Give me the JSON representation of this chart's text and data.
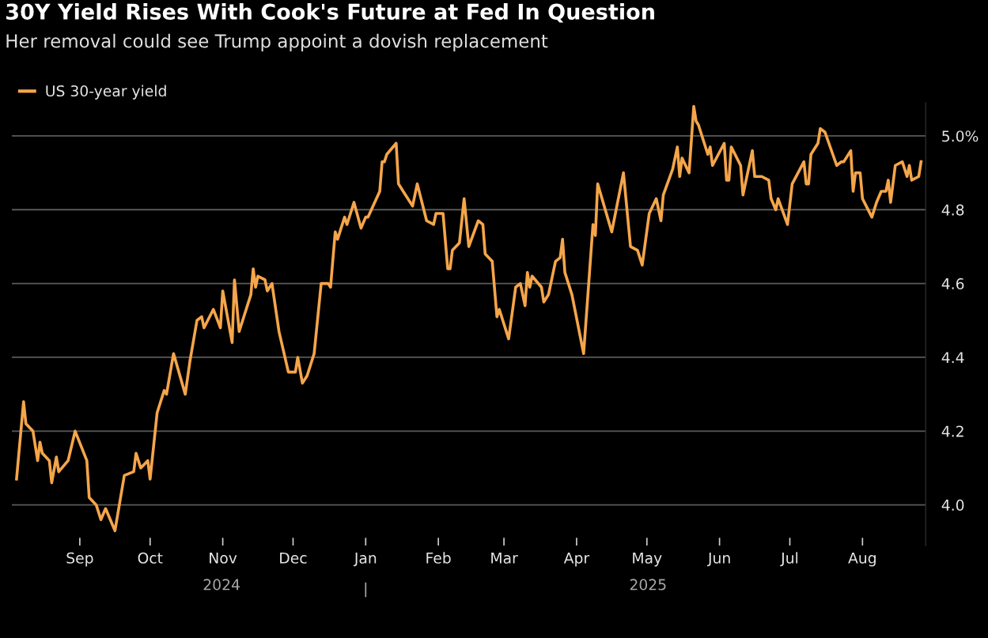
{
  "chart_data": {
    "type": "line",
    "title": "30Y Yield Rises With Cook's Future at Fed In Question",
    "subtitle": "Her removal could see Trump appoint a dovish replacement",
    "x": [
      "2024-08-05",
      "2024-08-08",
      "2024-08-09",
      "2024-08-12",
      "2024-08-14",
      "2024-08-15",
      "2024-08-16",
      "2024-08-19",
      "2024-08-20",
      "2024-08-22",
      "2024-08-23",
      "2024-08-27",
      "2024-08-30",
      "2024-09-04",
      "2024-09-05",
      "2024-09-08",
      "2024-09-10",
      "2024-09-12",
      "2024-09-16",
      "2024-09-20",
      "2024-09-24",
      "2024-09-25",
      "2024-09-27",
      "2024-09-30",
      "2024-10-01",
      "2024-10-04",
      "2024-10-07",
      "2024-10-08",
      "2024-10-11",
      "2024-10-16",
      "2024-10-18",
      "2024-10-21",
      "2024-10-23",
      "2024-10-24",
      "2024-10-28",
      "2024-10-31",
      "2024-11-01",
      "2024-11-05",
      "2024-11-06",
      "2024-11-08",
      "2024-11-13",
      "2024-11-14",
      "2024-11-15",
      "2024-11-16",
      "2024-11-19",
      "2024-11-20",
      "2024-11-22",
      "2024-11-25",
      "2024-11-29",
      "2024-12-02",
      "2024-12-03",
      "2024-12-05",
      "2024-12-07",
      "2024-12-10",
      "2024-12-13",
      "2024-12-16",
      "2024-12-17",
      "2024-12-19",
      "2024-12-20",
      "2024-12-23",
      "2024-12-24",
      "2024-12-27",
      "2024-12-30",
      "2025-01-01",
      "2025-01-02",
      "2025-01-07",
      "2025-01-08",
      "2025-01-09",
      "2025-01-10",
      "2025-01-14",
      "2025-01-15",
      "2025-01-17",
      "2025-01-21",
      "2025-01-23",
      "2025-01-27",
      "2025-01-30",
      "2025-01-31",
      "2025-02-03",
      "2025-02-05",
      "2025-02-06",
      "2025-02-07",
      "2025-02-10",
      "2025-02-12",
      "2025-02-14",
      "2025-02-18",
      "2025-02-20",
      "2025-02-21",
      "2025-02-24",
      "2025-02-26",
      "2025-02-27",
      "2025-03-03",
      "2025-03-06",
      "2025-03-08",
      "2025-03-10",
      "2025-03-11",
      "2025-03-12",
      "2025-03-13",
      "2025-03-17",
      "2025-03-18",
      "2025-03-20",
      "2025-03-23",
      "2025-03-25",
      "2025-03-26",
      "2025-03-27",
      "2025-03-30",
      "2025-04-04",
      "2025-04-08",
      "2025-04-09",
      "2025-04-10",
      "2025-04-16",
      "2025-04-21",
      "2025-04-24",
      "2025-04-27",
      "2025-04-29",
      "2025-05-02",
      "2025-05-05",
      "2025-05-07",
      "2025-05-08",
      "2025-05-12",
      "2025-05-14",
      "2025-05-15",
      "2025-05-16",
      "2025-05-19",
      "2025-05-21",
      "2025-05-22",
      "2025-05-23",
      "2025-05-27",
      "2025-05-28",
      "2025-05-29",
      "2025-06-03",
      "2025-06-04",
      "2025-06-05",
      "2025-06-06",
      "2025-06-10",
      "2025-06-11",
      "2025-06-15",
      "2025-06-16",
      "2025-06-19",
      "2025-06-22",
      "2025-06-23",
      "2025-06-25",
      "2025-06-26",
      "2025-06-30",
      "2025-07-02",
      "2025-07-07",
      "2025-07-08",
      "2025-07-09",
      "2025-07-10",
      "2025-07-13",
      "2025-07-14",
      "2025-07-16",
      "2025-07-21",
      "2025-07-23",
      "2025-07-24",
      "2025-07-27",
      "2025-07-28",
      "2025-07-29",
      "2025-07-31",
      "2025-08-01",
      "2025-08-05",
      "2025-08-07",
      "2025-08-09",
      "2025-08-11",
      "2025-08-12",
      "2025-08-13",
      "2025-08-15",
      "2025-08-18",
      "2025-08-20",
      "2025-08-21",
      "2025-08-22",
      "2025-08-25",
      "2025-08-26"
    ],
    "series": [
      {
        "name": "US 30-year yield",
        "color": "#f5a54a",
        "values": [
          4.07,
          4.28,
          4.22,
          4.2,
          4.12,
          4.17,
          4.14,
          4.12,
          4.06,
          4.13,
          4.09,
          4.12,
          4.2,
          4.12,
          4.02,
          4.0,
          3.96,
          3.99,
          3.93,
          4.08,
          4.09,
          4.14,
          4.1,
          4.12,
          4.07,
          4.25,
          4.31,
          4.3,
          4.41,
          4.3,
          4.39,
          4.5,
          4.51,
          4.48,
          4.53,
          4.48,
          4.58,
          4.44,
          4.61,
          4.47,
          4.57,
          4.64,
          4.59,
          4.62,
          4.61,
          4.58,
          4.6,
          4.47,
          4.36,
          4.36,
          4.4,
          4.33,
          4.35,
          4.41,
          4.6,
          4.6,
          4.59,
          4.74,
          4.72,
          4.78,
          4.76,
          4.82,
          4.75,
          4.78,
          4.78,
          4.85,
          4.93,
          4.93,
          4.95,
          4.98,
          4.87,
          4.85,
          4.81,
          4.87,
          4.77,
          4.76,
          4.79,
          4.79,
          4.64,
          4.64,
          4.69,
          4.71,
          4.83,
          4.7,
          4.77,
          4.76,
          4.68,
          4.66,
          4.51,
          4.53,
          4.45,
          4.59,
          4.6,
          4.54,
          4.63,
          4.59,
          4.62,
          4.59,
          4.55,
          4.57,
          4.66,
          4.67,
          4.72,
          4.63,
          4.57,
          4.41,
          4.76,
          4.73,
          4.87,
          4.74,
          4.9,
          4.7,
          4.69,
          4.65,
          4.79,
          4.83,
          4.77,
          4.84,
          4.91,
          4.97,
          4.89,
          4.94,
          4.9,
          5.08,
          5.04,
          5.03,
          4.95,
          4.97,
          4.92,
          4.98,
          4.88,
          4.88,
          4.97,
          4.92,
          4.84,
          4.96,
          4.89,
          4.89,
          4.88,
          4.83,
          4.8,
          4.83,
          4.76,
          4.87,
          4.93,
          4.87,
          4.87,
          4.95,
          4.98,
          5.02,
          5.01,
          4.92,
          4.93,
          4.93,
          4.96,
          4.85,
          4.9,
          4.9,
          4.83,
          4.78,
          4.82,
          4.85,
          4.85,
          4.88,
          4.82,
          4.92,
          4.93,
          4.89,
          4.92,
          4.88,
          4.89,
          4.93
        ]
      }
    ],
    "xlim": [
      "2024-08-03",
      "2025-08-28"
    ],
    "xticks": [
      {
        "value": "2024-09-01",
        "label": "Sep"
      },
      {
        "value": "2024-10-01",
        "label": "Oct"
      },
      {
        "value": "2024-11-01",
        "label": "Nov"
      },
      {
        "value": "2024-12-01",
        "label": "Dec"
      },
      {
        "value": "2025-01-01",
        "label": "Jan"
      },
      {
        "value": "2025-02-01",
        "label": "Feb"
      },
      {
        "value": "2025-03-01",
        "label": "Mar"
      },
      {
        "value": "2025-04-01",
        "label": "Apr"
      },
      {
        "value": "2025-05-01",
        "label": "May"
      },
      {
        "value": "2025-06-01",
        "label": "Jun"
      },
      {
        "value": "2025-07-01",
        "label": "Jul"
      },
      {
        "value": "2025-08-01",
        "label": "Aug"
      }
    ],
    "yticks": [
      {
        "value": 4.0,
        "label": "4.0"
      },
      {
        "value": 4.2,
        "label": "4.2"
      },
      {
        "value": 4.4,
        "label": "4.4"
      },
      {
        "value": 4.6,
        "label": "4.6"
      },
      {
        "value": 4.8,
        "label": "4.8"
      },
      {
        "value": 5.0,
        "label": "5.0%"
      }
    ],
    "ylim": [
      3.89,
      5.09
    ],
    "annotations": [
      "2024",
      "2025"
    ],
    "grid": "y",
    "legend": "top left",
    "line_style": "solid"
  }
}
